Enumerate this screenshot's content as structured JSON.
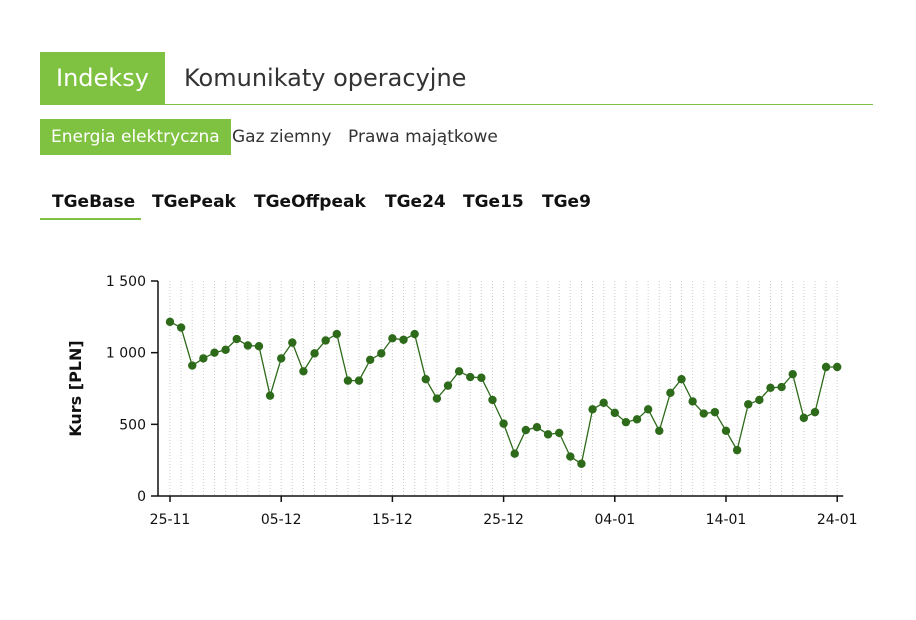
{
  "top_tabs": [
    "Indeksy",
    "Komunikaty operacyjne"
  ],
  "sub_tabs": [
    "Energia elektryczna",
    "Gaz ziemny",
    "Prawa majątkowe"
  ],
  "index_tabs": [
    "TGeBase",
    "TGePeak",
    "TGeOffpeak",
    "TGe24",
    "TGe15",
    "TGe9"
  ],
  "colors": {
    "accent": "#7fc241",
    "series": "#2d6a1a",
    "grid": "#cccccc"
  },
  "chart_data": {
    "type": "line",
    "ylabel": "Kurs [PLN]",
    "ylim": [
      0,
      1500
    ],
    "yticks": [
      0,
      500,
      1000,
      1500
    ],
    "ytick_labels": [
      "0",
      "500",
      "1 000",
      "1 500"
    ],
    "xtick_labels": [
      "25-11",
      "05-12",
      "15-12",
      "25-12",
      "04-01",
      "14-01",
      "24-01"
    ],
    "xtick_day_index": [
      0,
      10,
      20,
      30,
      40,
      50,
      60
    ],
    "grid": "vertical dotted per day",
    "series": [
      {
        "values": [
          1215,
          1175,
          910,
          960,
          1000,
          1020,
          1095,
          1050,
          1045,
          700,
          960,
          1070,
          870,
          995,
          1085,
          1130,
          805,
          805,
          950,
          995,
          1100,
          1090,
          1130,
          815,
          680,
          770,
          870,
          830,
          825,
          670,
          505,
          295,
          460,
          480,
          430,
          440,
          275,
          225,
          605,
          650,
          580,
          515,
          535,
          605,
          455,
          720,
          815,
          660,
          575,
          585,
          455,
          320,
          640,
          670,
          755,
          760,
          850,
          545,
          585,
          900,
          900
        ]
      }
    ]
  }
}
